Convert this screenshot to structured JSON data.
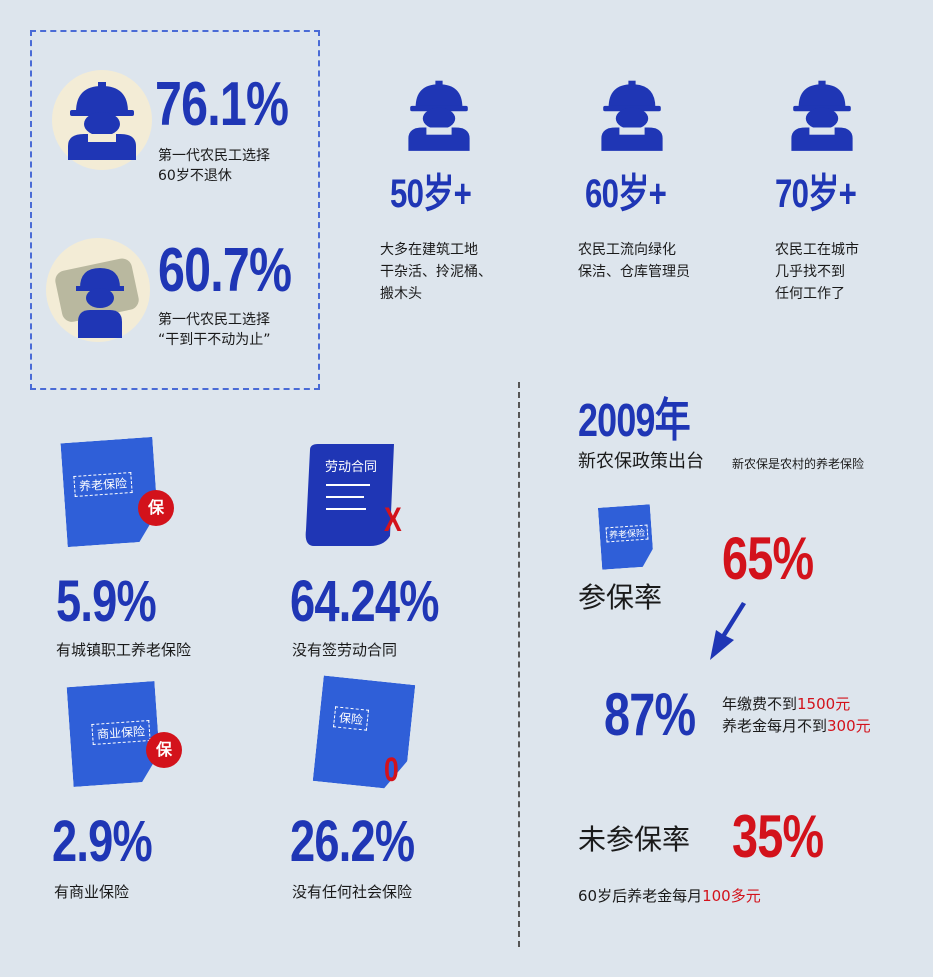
{
  "colors": {
    "blue": "#1f36b5",
    "red": "#d3121b",
    "background": "#dde5ed",
    "doc_blue": "#2f5fd8"
  },
  "top_left": {
    "stat1": {
      "value": "76.1%",
      "caption_line1": "第一代农民工选择",
      "caption_line2": "60岁不退休",
      "icon": "worker-helmet-icon"
    },
    "stat2": {
      "value": "60.7%",
      "caption_line1": "第一代农民工选择",
      "caption_line2": "“干到干不动为止”",
      "icon": "resting-worker-icon"
    }
  },
  "ages": [
    {
      "age": "50岁+",
      "line1": "大多在建筑工地",
      "line2": "干杂活、拎泥桶、",
      "line3": "搬木头",
      "icon": "worker-helmet-icon"
    },
    {
      "age": "60岁+",
      "line1": "农民工流向绿化",
      "line2": "保洁、仓库管理员",
      "line3": "",
      "icon": "worker-helmet-icon"
    },
    {
      "age": "70岁+",
      "line1": "农民工在城市",
      "line2": "几乎找不到",
      "line3": "任何工作了",
      "icon": "worker-helmet-icon"
    }
  ],
  "insurance": [
    {
      "value": "5.9%",
      "caption": "有城镇职工养老保险",
      "doc_label": "养老保险",
      "badge": "保"
    },
    {
      "value": "64.24%",
      "caption": "没有签劳动合同",
      "doc_label": "劳动合同",
      "badge": "X"
    },
    {
      "value": "2.9%",
      "caption": "有商业保险",
      "doc_label": "商业保险",
      "badge": "保"
    },
    {
      "value": "26.2%",
      "caption": "没有任何社会保险",
      "doc_label": "保险",
      "badge": "0"
    }
  ],
  "right": {
    "year": "2009年",
    "subtitle": "新农保政策出台",
    "subtitle_note": "新农保是农村的养老保险",
    "doc_label": "养老保险",
    "rate_label": "参保率",
    "rate_value": "65%",
    "rate2_value": "87%",
    "note1_a": "年缴费不到",
    "note1_b": "1500元",
    "note2_a": "养老金每月不到",
    "note2_b": "300元",
    "unrate_label": "未参保率",
    "unrate_value": "35%",
    "footer_a": "60岁后养老金每月",
    "footer_b": "100多元"
  }
}
